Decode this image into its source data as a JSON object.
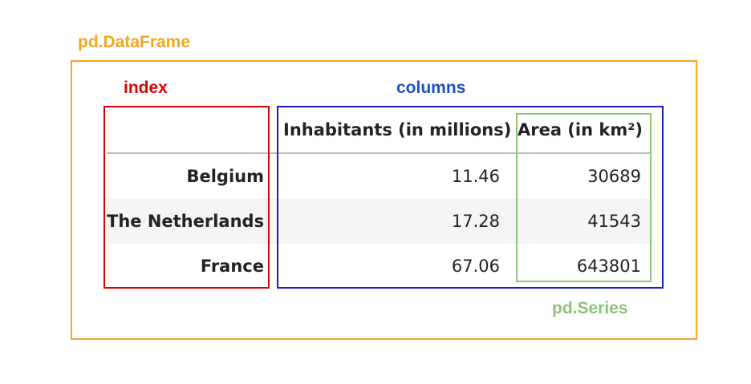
{
  "labels": {
    "dataframe": "pd.DataFrame",
    "index": "index",
    "columns": "columns",
    "series": "pd.Series"
  },
  "colors": {
    "dataframe": "#f5a623",
    "index": "#e00000",
    "columns": "#1a1acc",
    "series": "#8cc47a"
  },
  "table": {
    "headers": [
      "",
      "Inhabitants (in millions)",
      "Area (in km²)"
    ],
    "rows": [
      {
        "index": "Belgium",
        "inhabitants": "11.46",
        "area": "30689"
      },
      {
        "index": "The Netherlands",
        "inhabitants": "17.28",
        "area": "41543"
      },
      {
        "index": "France",
        "inhabitants": "67.06",
        "area": "643801"
      }
    ]
  }
}
